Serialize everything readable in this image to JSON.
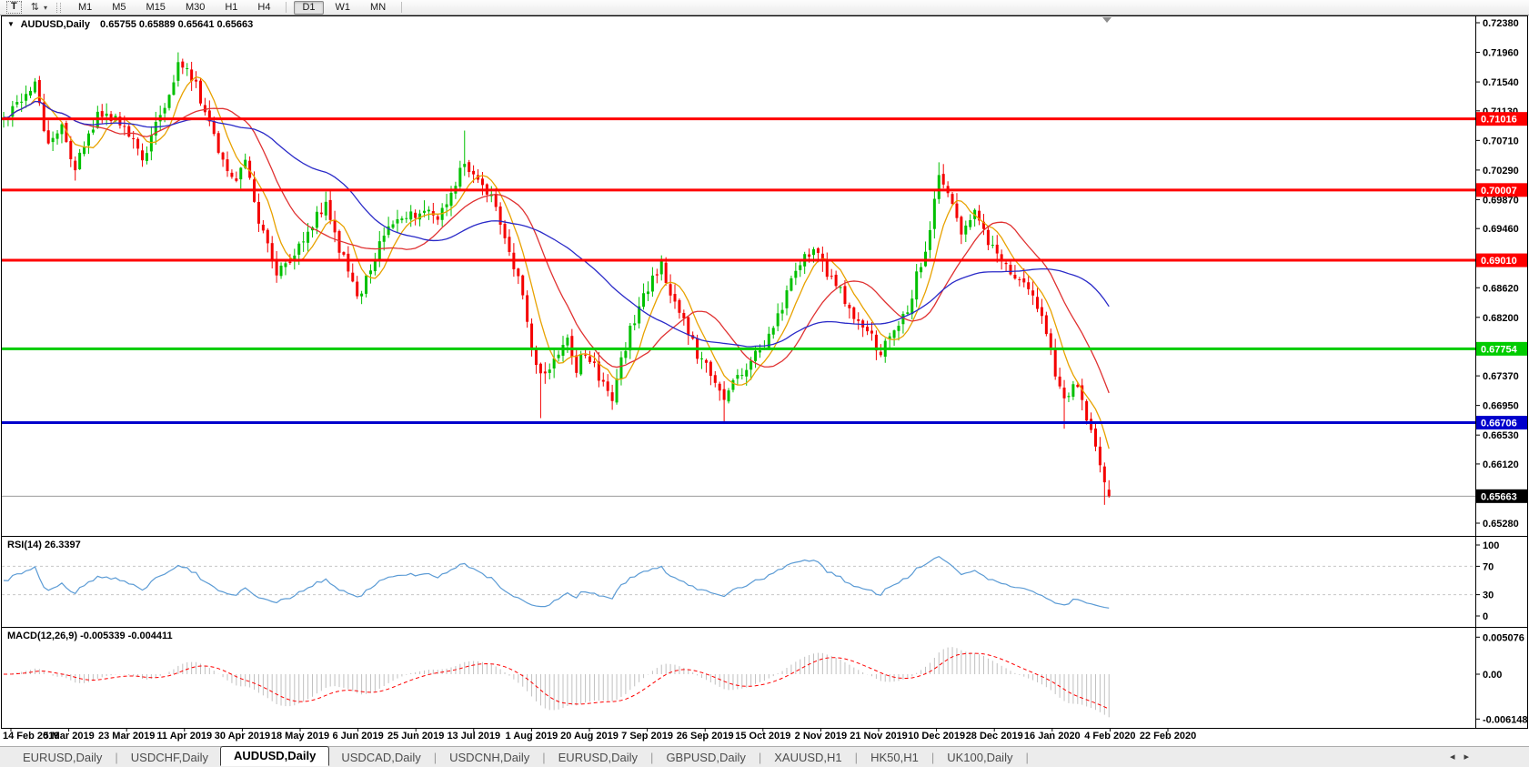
{
  "icons": {
    "dropdown": "▼",
    "text_tool": "T",
    "arrows_tool": "⇅",
    "caret": "▾",
    "shift_marker": "▾",
    "tab_prev": "◂",
    "tab_next": "▸"
  },
  "toolbar": {
    "timeframes": [
      "M1",
      "M5",
      "M15",
      "M30",
      "H1",
      "H4",
      "D1",
      "W1",
      "MN"
    ],
    "active_timeframe": "D1"
  },
  "chart": {
    "title": "AUDUSD,Daily",
    "ohlc_values": "0.65755 0.65889 0.65641 0.65663"
  },
  "chart_data": {
    "type": "candlestick",
    "symbol": "AUDUSD",
    "period": "Daily",
    "last_candle": {
      "open": 0.65755,
      "high": 0.65889,
      "low": 0.65641,
      "close": 0.65663
    },
    "candle_count": 248,
    "price_axis": {
      "min": 0.6528,
      "max": 0.7238,
      "ticks": [
        "0.72380",
        "0.71960",
        "0.71540",
        "0.71130",
        "0.70710",
        "0.70290",
        "0.69870",
        "0.69460",
        "0.68620",
        "0.68200",
        "0.67370",
        "0.66950",
        "0.66530",
        "0.66120",
        "0.65280"
      ]
    },
    "x_labels": [
      "14 Feb 2019",
      "5 Mar 2019",
      "23 Mar 2019",
      "11 Apr 2019",
      "30 Apr 2019",
      "18 May 2019",
      "6 Jun 2019",
      "25 Jun 2019",
      "13 Jul 2019",
      "1 Aug 2019",
      "20 Aug 2019",
      "7 Sep 2019",
      "26 Sep 2019",
      "15 Oct 2019",
      "2 Nov 2019",
      "21 Nov 2019",
      "10 Dec 2019",
      "28 Dec 2019",
      "16 Jan 2020",
      "4 Feb 2020",
      "22 Feb 2020"
    ],
    "close_waypoints": [
      [
        0,
        0.7095
      ],
      [
        7,
        0.715
      ],
      [
        10,
        0.7065
      ],
      [
        13,
        0.709
      ],
      [
        16,
        0.703
      ],
      [
        21,
        0.7105
      ],
      [
        26,
        0.7095
      ],
      [
        31,
        0.7045
      ],
      [
        37,
        0.714
      ],
      [
        39,
        0.718
      ],
      [
        43,
        0.715
      ],
      [
        46,
        0.709
      ],
      [
        51,
        0.7015
      ],
      [
        54,
        0.7035
      ],
      [
        57,
        0.696
      ],
      [
        61,
        0.688
      ],
      [
        64,
        0.6905
      ],
      [
        68,
        0.6945
      ],
      [
        72,
        0.698
      ],
      [
        76,
        0.69
      ],
      [
        79,
        0.6845
      ],
      [
        82,
        0.6895
      ],
      [
        85,
        0.6935
      ],
      [
        89,
        0.696
      ],
      [
        94,
        0.6975
      ],
      [
        97,
        0.696
      ],
      [
        101,
        0.701
      ],
      [
        103,
        0.7045
      ],
      [
        105,
        0.7025
      ],
      [
        109,
        0.699
      ],
      [
        112,
        0.693
      ],
      [
        114,
        0.688
      ],
      [
        116,
        0.686
      ],
      [
        118,
        0.677
      ],
      [
        120,
        0.6735
      ],
      [
        123,
        0.676
      ],
      [
        126,
        0.6785
      ],
      [
        128,
        0.6745
      ],
      [
        130,
        0.6775
      ],
      [
        133,
        0.6735
      ],
      [
        136,
        0.6705
      ],
      [
        138,
        0.676
      ],
      [
        141,
        0.682
      ],
      [
        144,
        0.6865
      ],
      [
        147,
        0.6895
      ],
      [
        150,
        0.684
      ],
      [
        153,
        0.68
      ],
      [
        155,
        0.677
      ],
      [
        158,
        0.6735
      ],
      [
        161,
        0.67
      ],
      [
        164,
        0.6735
      ],
      [
        167,
        0.676
      ],
      [
        170,
        0.6775
      ],
      [
        173,
        0.682
      ],
      [
        176,
        0.6875
      ],
      [
        179,
        0.6905
      ],
      [
        181,
        0.6925
      ],
      [
        184,
        0.688
      ],
      [
        187,
        0.6855
      ],
      [
        190,
        0.6815
      ],
      [
        193,
        0.68
      ],
      [
        196,
        0.677
      ],
      [
        199,
        0.68
      ],
      [
        202,
        0.683
      ],
      [
        204,
        0.688
      ],
      [
        206,
        0.692
      ],
      [
        208,
        0.698
      ],
      [
        209,
        0.703
      ],
      [
        211,
        0.7
      ],
      [
        214,
        0.693
      ],
      [
        217,
        0.6965
      ],
      [
        220,
        0.693
      ],
      [
        223,
        0.69
      ],
      [
        227,
        0.687
      ],
      [
        230,
        0.685
      ],
      [
        233,
        0.68
      ],
      [
        235,
        0.674
      ],
      [
        237,
        0.67
      ],
      [
        239,
        0.673
      ],
      [
        241,
        0.67
      ],
      [
        243,
        0.6665
      ],
      [
        245,
        0.6618
      ],
      [
        246,
        0.658
      ],
      [
        247,
        0.65663
      ]
    ],
    "wick_overrides": [
      {
        "i": 39,
        "high": 0.7196
      },
      {
        "i": 103,
        "high": 0.7085
      },
      {
        "i": 120,
        "low": 0.6677
      },
      {
        "i": 136,
        "low": 0.6689
      },
      {
        "i": 161,
        "low": 0.6671
      },
      {
        "i": 209,
        "high": 0.704
      },
      {
        "i": 237,
        "low": 0.6662
      },
      {
        "i": 246,
        "low": 0.6554
      }
    ],
    "h_lines": [
      {
        "price": 0.71016,
        "label": "0.71016",
        "color": "#FF0000"
      },
      {
        "price": 0.70007,
        "label": "0.70007",
        "color": "#FF0000"
      },
      {
        "price": 0.6901,
        "label": "0.69010",
        "color": "#FF0000"
      },
      {
        "price": 0.67754,
        "label": "0.67754",
        "color": "#00CC00"
      },
      {
        "price": 0.66706,
        "label": "0.66706",
        "color": "#0000CC"
      }
    ],
    "bid_line": {
      "price": 0.65663,
      "label": "0.65663",
      "line_color": "#9C9C9C",
      "label_bg": "#000000"
    },
    "candle_colors": {
      "up": "#00C000",
      "down": "#F40000"
    },
    "moving_averages": [
      {
        "period": 7,
        "color": "#E8A200"
      },
      {
        "period": 18,
        "color": "#E03232"
      },
      {
        "period": 40,
        "color": "#2A2AC8"
      }
    ],
    "rsi": {
      "label": "RSI(14) 26.3397",
      "period": 14,
      "value": 26.3397,
      "color": "#5B9BD5",
      "levels": [
        70,
        30
      ],
      "ticks": [
        "100",
        "70",
        "30",
        "0"
      ],
      "range": [
        0,
        100
      ]
    },
    "macd": {
      "label": "MACD(12,26,9) -0.005339 -0.004411",
      "fast": 12,
      "slow": 26,
      "signal": 9,
      "macd_value": -0.005339,
      "signal_value": -0.004411,
      "ticks": [
        "0.005076",
        "0.00",
        "-0.006148"
      ],
      "max": 0.005076,
      "min": -0.006148,
      "hist_color": "#C0C0C0",
      "signal_color": "#FF0000"
    }
  },
  "tabs": {
    "items": [
      "EURUSD,Daily",
      "USDCHF,Daily",
      "AUDUSD,Daily",
      "USDCAD,Daily",
      "USDCNH,Daily",
      "EURUSD,Daily",
      "GBPUSD,Daily",
      "XAUUSD,H1",
      "HK50,H1",
      "UK100,Daily"
    ],
    "active_index": 2
  }
}
